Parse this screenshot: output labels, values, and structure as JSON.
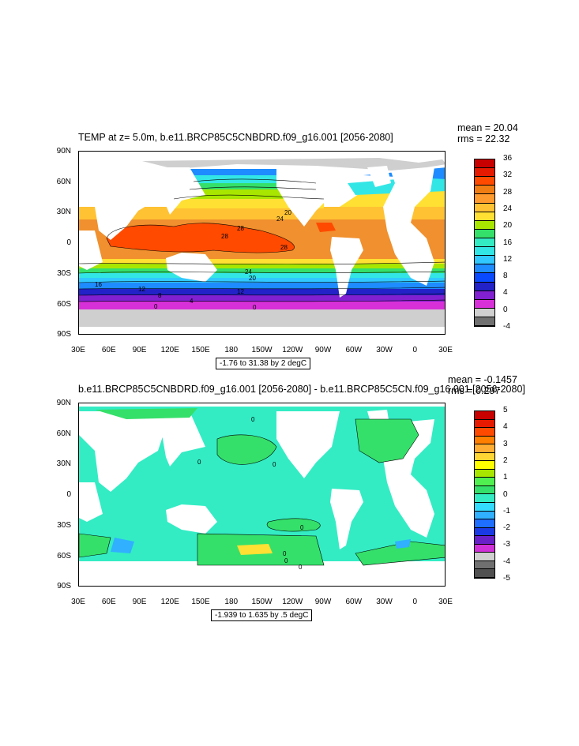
{
  "panel1": {
    "title": "TEMP at z=   5.0m, b.e11.BRCP85C5CNBDRD.f09_g16.001 [2056-2080]",
    "mean": "mean = 20.04",
    "rms": "rms = 22.32",
    "info": "-1.76 to 31.38 by 2 degC",
    "colorbar_labels": [
      "36",
      "32",
      "28",
      "24",
      "20",
      "16",
      "12",
      "8",
      "4",
      "0",
      "-4"
    ],
    "colorbar_colors": [
      "#c80000",
      "#e51a00",
      "#ff4a00",
      "#f07d13",
      "#ff9a2e",
      "#ffc233",
      "#ffe033",
      "#a8e600",
      "#35e06a",
      "#33ecc4",
      "#33e6e6",
      "#30c8ff",
      "#1e8cff",
      "#0a4aff",
      "#2222c8",
      "#8020d0",
      "#d830d8",
      "#d0d0d0",
      "#707070"
    ],
    "contour_labels": [
      "28",
      "24",
      "20",
      "28",
      "28",
      "24",
      "20",
      "16",
      "12",
      "12",
      "8",
      "4",
      "0",
      "0",
      "16",
      "28",
      "24",
      "20"
    ]
  },
  "panel2": {
    "title": "b.e11.BRCP85C5CNBDRD.f09_g16.001 [2056-2080] - b.e11.BRCP85C5CN.f09_g16.001 [2056-2080]",
    "mean": "mean = -0.1457",
    "rms": "rms = 0.297",
    "info": "-1.939 to 1.635 by .5 degC",
    "colorbar_labels": [
      "5",
      "4",
      "3",
      "2",
      "1",
      "0",
      "-1",
      "-2",
      "-3",
      "-4",
      "-5"
    ],
    "colorbar_colors": [
      "#c80000",
      "#e51a00",
      "#ff4a00",
      "#ff8000",
      "#ffae33",
      "#ffd633",
      "#ffff00",
      "#a8e600",
      "#50f050",
      "#35e06a",
      "#33ecc4",
      "#33dcff",
      "#30b0ff",
      "#1e6eff",
      "#1a3ae6",
      "#6a20c8",
      "#d030d8",
      "#d0d0d0",
      "#707070",
      "#505050"
    ],
    "contour_labels": [
      "0",
      "0",
      "0",
      "0",
      "0",
      "0",
      "0",
      "0",
      "0"
    ]
  },
  "lat_labels": [
    "90N",
    "60N",
    "30N",
    "0",
    "30S",
    "60S",
    "90S"
  ],
  "lon_labels": [
    "30E",
    "60E",
    "90E",
    "120E",
    "150E",
    "180",
    "150W",
    "120W",
    "90W",
    "60W",
    "30W",
    "0",
    "30E"
  ]
}
